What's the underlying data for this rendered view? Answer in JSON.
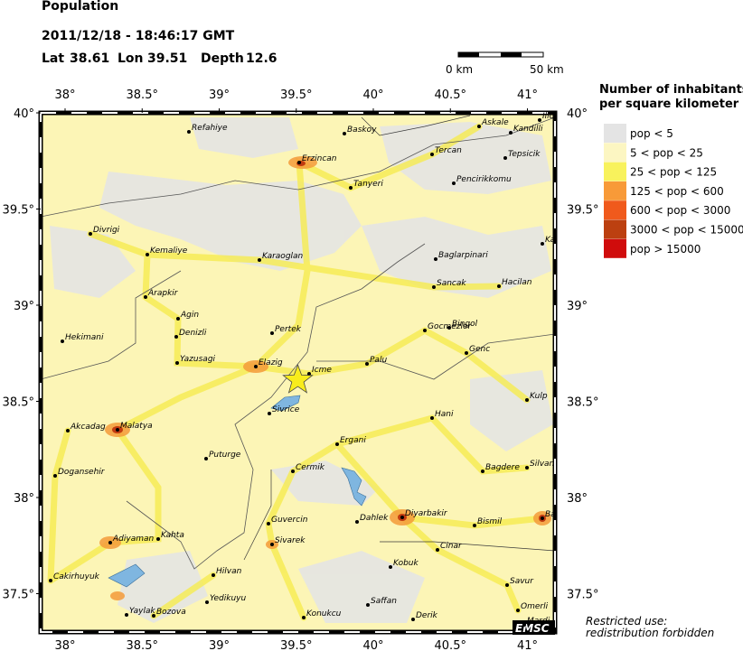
{
  "header": {
    "title": "Population",
    "datetime": "2011/12/18 - 18:46:17 GMT",
    "lat_label": "Lat",
    "lat": 38.61,
    "lon_label": "Lon",
    "lon": 39.51,
    "depth_label": "Depth",
    "depth": 12.6
  },
  "scale": {
    "start": "0 km",
    "end": "50 km"
  },
  "lon_ticks": [
    {
      "value": 38,
      "label": "38°"
    },
    {
      "value": 38.5,
      "label": "38.5°"
    },
    {
      "value": 39,
      "label": "39°"
    },
    {
      "value": 39.5,
      "label": "39.5°"
    },
    {
      "value": 40,
      "label": "40°"
    },
    {
      "value": 40.5,
      "label": "40.5°"
    },
    {
      "value": 41,
      "label": "41°"
    }
  ],
  "lat_ticks": [
    {
      "value": 40,
      "label": "40°"
    },
    {
      "value": 39.5,
      "label": "39.5°"
    },
    {
      "value": 39,
      "label": "39°"
    },
    {
      "value": 38.5,
      "label": "38.5°"
    },
    {
      "value": 38,
      "label": "38°"
    },
    {
      "value": 37.5,
      "label": "37.5°"
    }
  ],
  "legend": {
    "title_line1": "Number of inhabitants",
    "title_line2": "per square kilometer",
    "items": [
      {
        "label": "pop < 5",
        "color": "#e4e4e4"
      },
      {
        "label": "5 < pop < 25",
        "color": "#fcf6c2"
      },
      {
        "label": "25 < pop < 125",
        "color": "#f8f25c"
      },
      {
        "label": "125 < pop < 600",
        "color": "#f89a38"
      },
      {
        "label": "600 < pop < 3000",
        "color": "#f05a1c"
      },
      {
        "label": "3000 < pop < 15000",
        "color": "#bc4010"
      },
      {
        "label": "pop > 15000",
        "color": "#d00c0c"
      }
    ]
  },
  "cities": [
    "Refahiye",
    "Baskoy",
    "Askale",
    "Kandilli",
    "Ilic",
    "Erzincan",
    "Tercan",
    "Tepsicik",
    "Tanyeri",
    "Pencirikkomu",
    "Divrigi",
    "Kemaliye",
    "Karaoglan",
    "Baglarpinari",
    "Ka",
    "Sancak",
    "Hacilan",
    "Arapkir",
    "Agin",
    "Denizli",
    "Pertek",
    "Gocmezler",
    "Bingol",
    "Hekimani",
    "Yazusagi",
    "Elazig",
    "Palu",
    "Genc",
    "Icme",
    "Kulp",
    "Sivrice",
    "Hani",
    "Akcadag",
    "Malatya",
    "Ergani",
    "Puturge",
    "Bagdere",
    "Silvan",
    "Cermik",
    "Dogansehir",
    "Dahlek",
    "Diyarbakir",
    "Bismil",
    "Ba",
    "Guvercin",
    "Sivarek",
    "Adiyaman",
    "Kahta",
    "Cinar",
    "Kobuk",
    "Hilvan",
    "Cakirhuyuk",
    "Savur",
    "Yedikuyu",
    "Saffan",
    "Omerli",
    "Yaylak",
    "Bozova",
    "Konukcu",
    "Derik",
    "Mardi"
  ],
  "footer": {
    "line1": "Restricted use:",
    "line2": "redistribution forbidden",
    "brand": "EMSC"
  }
}
